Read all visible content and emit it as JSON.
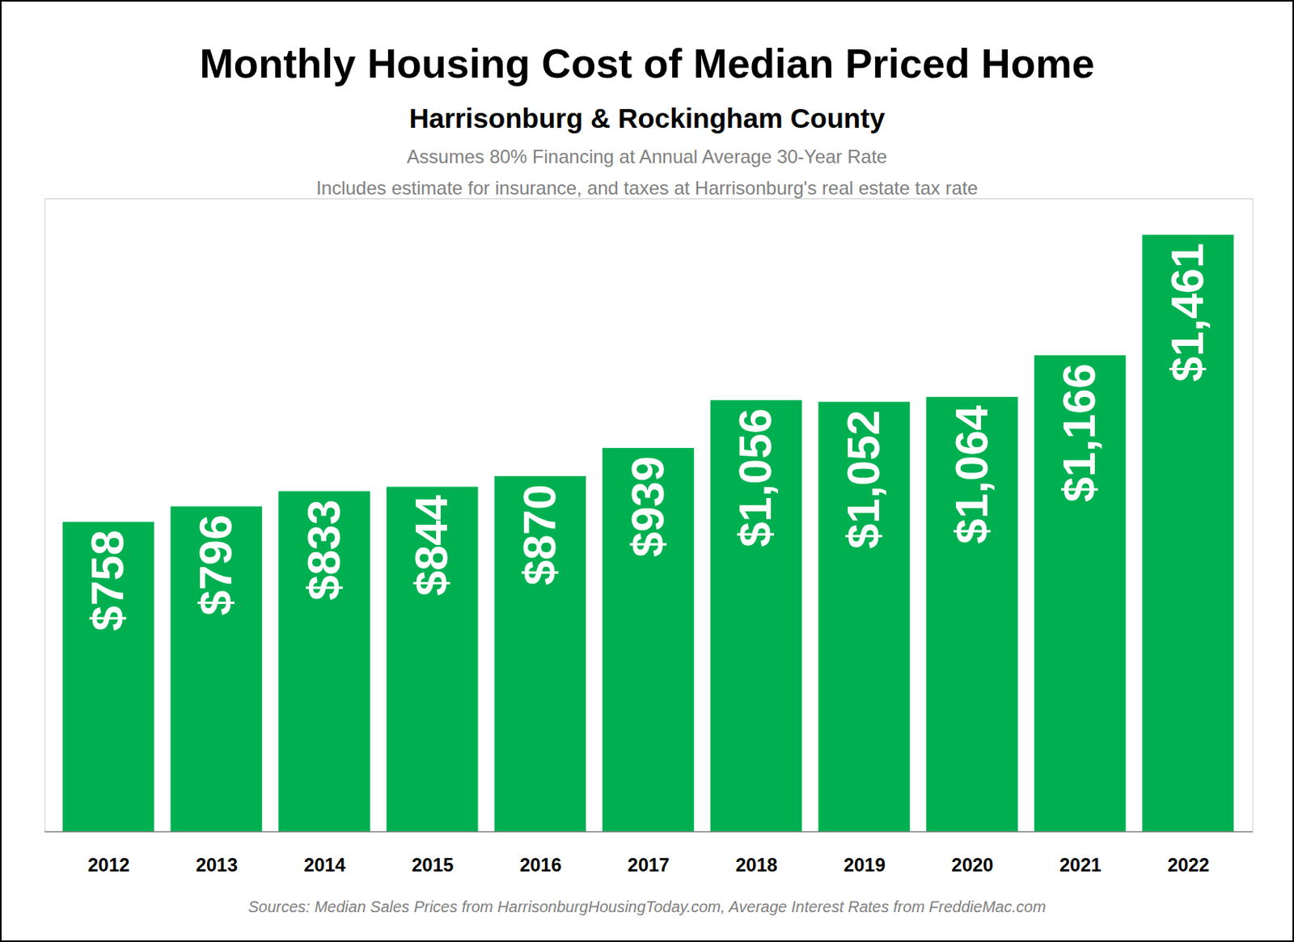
{
  "chart_data": {
    "type": "bar",
    "title": "Monthly Housing Cost of Median Priced Home",
    "subtitle": "Harrisonburg & Rockingham County",
    "annotations": [
      "Assumes 80% Financing at Annual Average 30-Year Rate",
      "Includes estimate for insurance, and taxes at Harrisonburg's real estate tax rate"
    ],
    "caption": "Sources: Median Sales Prices from HarrisonburgHousingToday.com, Average Interest Rates from FreddieMac.com",
    "categories": [
      "2012",
      "2013",
      "2014",
      "2015",
      "2016",
      "2017",
      "2018",
      "2019",
      "2020",
      "2021",
      "2022"
    ],
    "values": [
      758,
      796,
      833,
      844,
      870,
      939,
      1056,
      1052,
      1064,
      1166,
      1461
    ],
    "value_labels": [
      "$758",
      "$796",
      "$833",
      "$844",
      "$870",
      "$939",
      "$1,056",
      "$1,052",
      "$1,064",
      "$1,166",
      "$1,461"
    ],
    "color": "#00b050",
    "ylim": [
      0,
      1550
    ],
    "grid": false,
    "data_labels": true,
    "tick_labels": "x"
  }
}
